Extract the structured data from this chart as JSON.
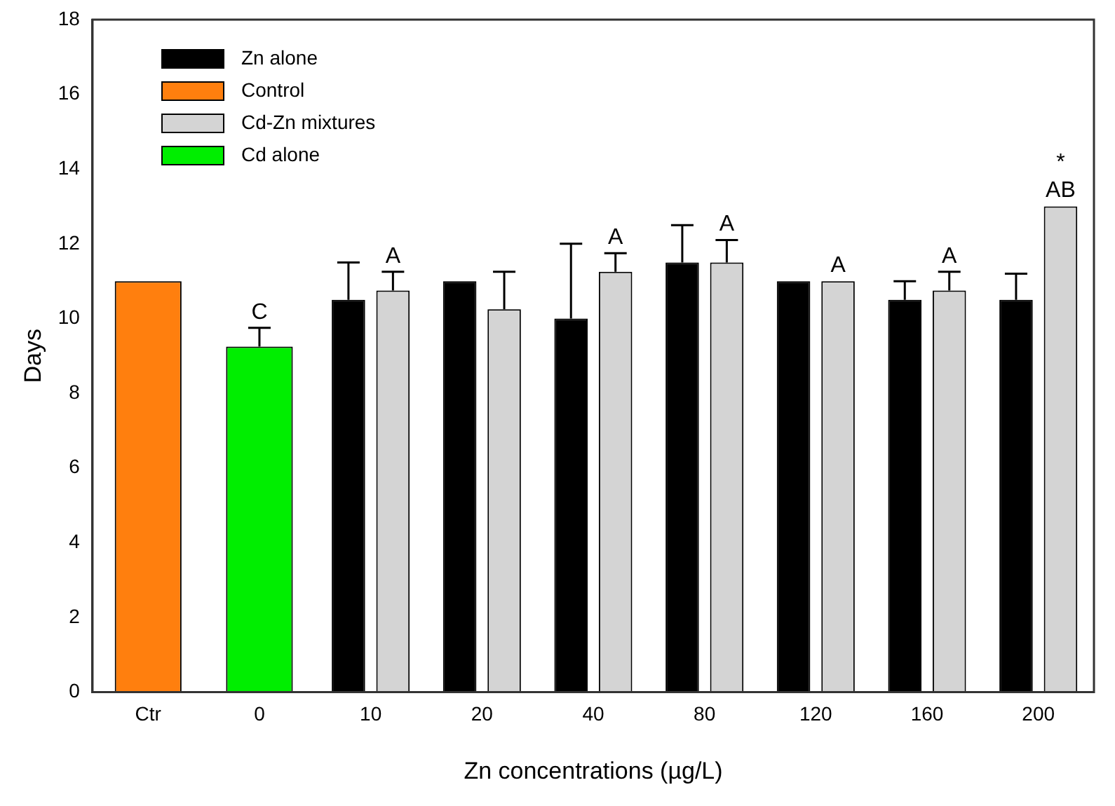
{
  "chart_data": {
    "type": "bar",
    "xlabel": "Zn concentrations (µg/L)",
    "ylabel": "Days",
    "categories": [
      "Ctr",
      "0",
      "10",
      "20",
      "40",
      "80",
      "120",
      "160",
      "200"
    ],
    "series": [
      {
        "name": "Zn alone",
        "color": "#000000",
        "values": [
          null,
          null,
          10.5,
          11,
          10,
          11.5,
          11,
          10.5,
          10.5
        ],
        "errors": [
          null,
          null,
          [
            10.5,
            11.5
          ],
          null,
          [
            10,
            12
          ],
          [
            11.5,
            12.5
          ],
          null,
          [
            10.5,
            11
          ],
          [
            10.5,
            11.2
          ]
        ]
      },
      {
        "name": "Control",
        "color": "#ff7f0e",
        "values": [
          11,
          null,
          null,
          null,
          null,
          null,
          null,
          null,
          null
        ]
      },
      {
        "name": "Cd-Zn mixtures",
        "color": "#d4d4d4",
        "values": [
          null,
          null,
          10.75,
          10.25,
          11.25,
          11.5,
          11,
          10.75,
          13
        ],
        "errors": [
          null,
          null,
          [
            10.75,
            11.25
          ],
          [
            10.25,
            11.25
          ],
          [
            11.25,
            11.75
          ],
          [
            11.5,
            12.1
          ],
          null,
          [
            10.75,
            11.25
          ],
          null
        ],
        "value_labels": [
          null,
          null,
          "A",
          null,
          "A",
          "A",
          "A",
          "A",
          "AB"
        ]
      },
      {
        "name": "Cd alone",
        "color": "#00ee00",
        "values": [
          null,
          9.25,
          null,
          null,
          null,
          null,
          null,
          null,
          null
        ],
        "errors": [
          null,
          [
            9.25,
            9.75
          ],
          null,
          null,
          null,
          null,
          null,
          null,
          null
        ],
        "value_labels": [
          null,
          "C",
          null,
          null,
          null,
          null,
          null,
          null,
          null
        ]
      }
    ],
    "ylim": [
      0,
      18
    ],
    "yticks": [
      0,
      2,
      4,
      6,
      8,
      10,
      12,
      14,
      16,
      18
    ],
    "grid": false,
    "legend": "top left",
    "annotations": [
      "*"
    ]
  }
}
